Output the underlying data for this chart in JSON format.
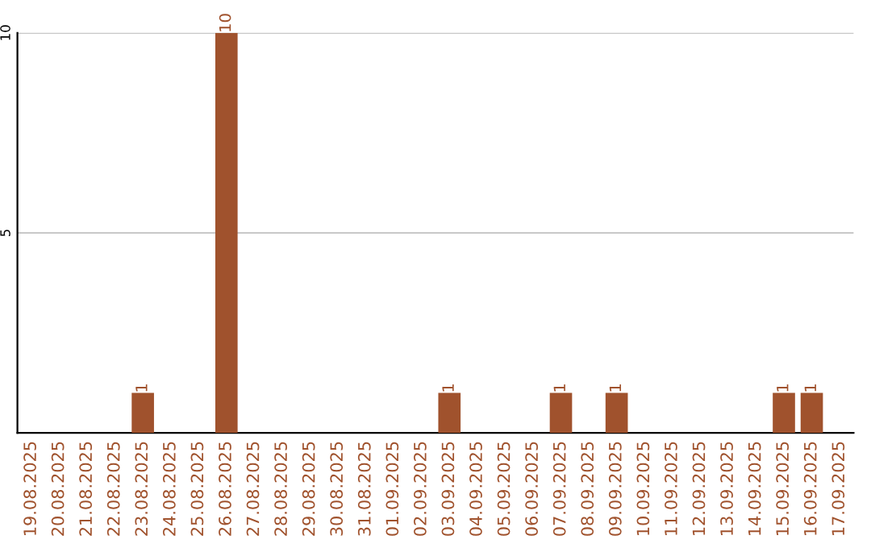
{
  "chart_data": {
    "type": "bar",
    "categories": [
      "19.08.2025",
      "20.08.2025",
      "21.08.2025",
      "22.08.2025",
      "23.08.2025",
      "24.08.2025",
      "25.08.2025",
      "26.08.2025",
      "27.08.2025",
      "28.08.2025",
      "29.08.2025",
      "30.08.2025",
      "31.08.2025",
      "01.09.2025",
      "02.09.2025",
      "03.09.2025",
      "04.09.2025",
      "05.09.2025",
      "06.09.2025",
      "07.09.2025",
      "08.09.2025",
      "09.09.2025",
      "10.09.2025",
      "11.09.2025",
      "12.09.2025",
      "13.09.2025",
      "14.09.2025",
      "15.09.2025",
      "16.09.2025",
      "17.09.2025"
    ],
    "values": [
      0,
      0,
      0,
      0,
      1,
      0,
      0,
      10,
      0,
      0,
      0,
      0,
      0,
      0,
      0,
      1,
      0,
      0,
      0,
      1,
      0,
      1,
      0,
      0,
      0,
      0,
      0,
      1,
      1,
      0
    ],
    "value_labels": [
      null,
      null,
      null,
      null,
      "1",
      null,
      null,
      "10",
      null,
      null,
      null,
      null,
      null,
      null,
      null,
      "1",
      null,
      null,
      null,
      "1",
      null,
      "1",
      null,
      null,
      null,
      null,
      null,
      "1",
      "1",
      null
    ],
    "color": "#a0522d",
    "ylim": [
      0,
      10
    ],
    "yticks": [
      5,
      10
    ],
    "grid": "y"
  }
}
